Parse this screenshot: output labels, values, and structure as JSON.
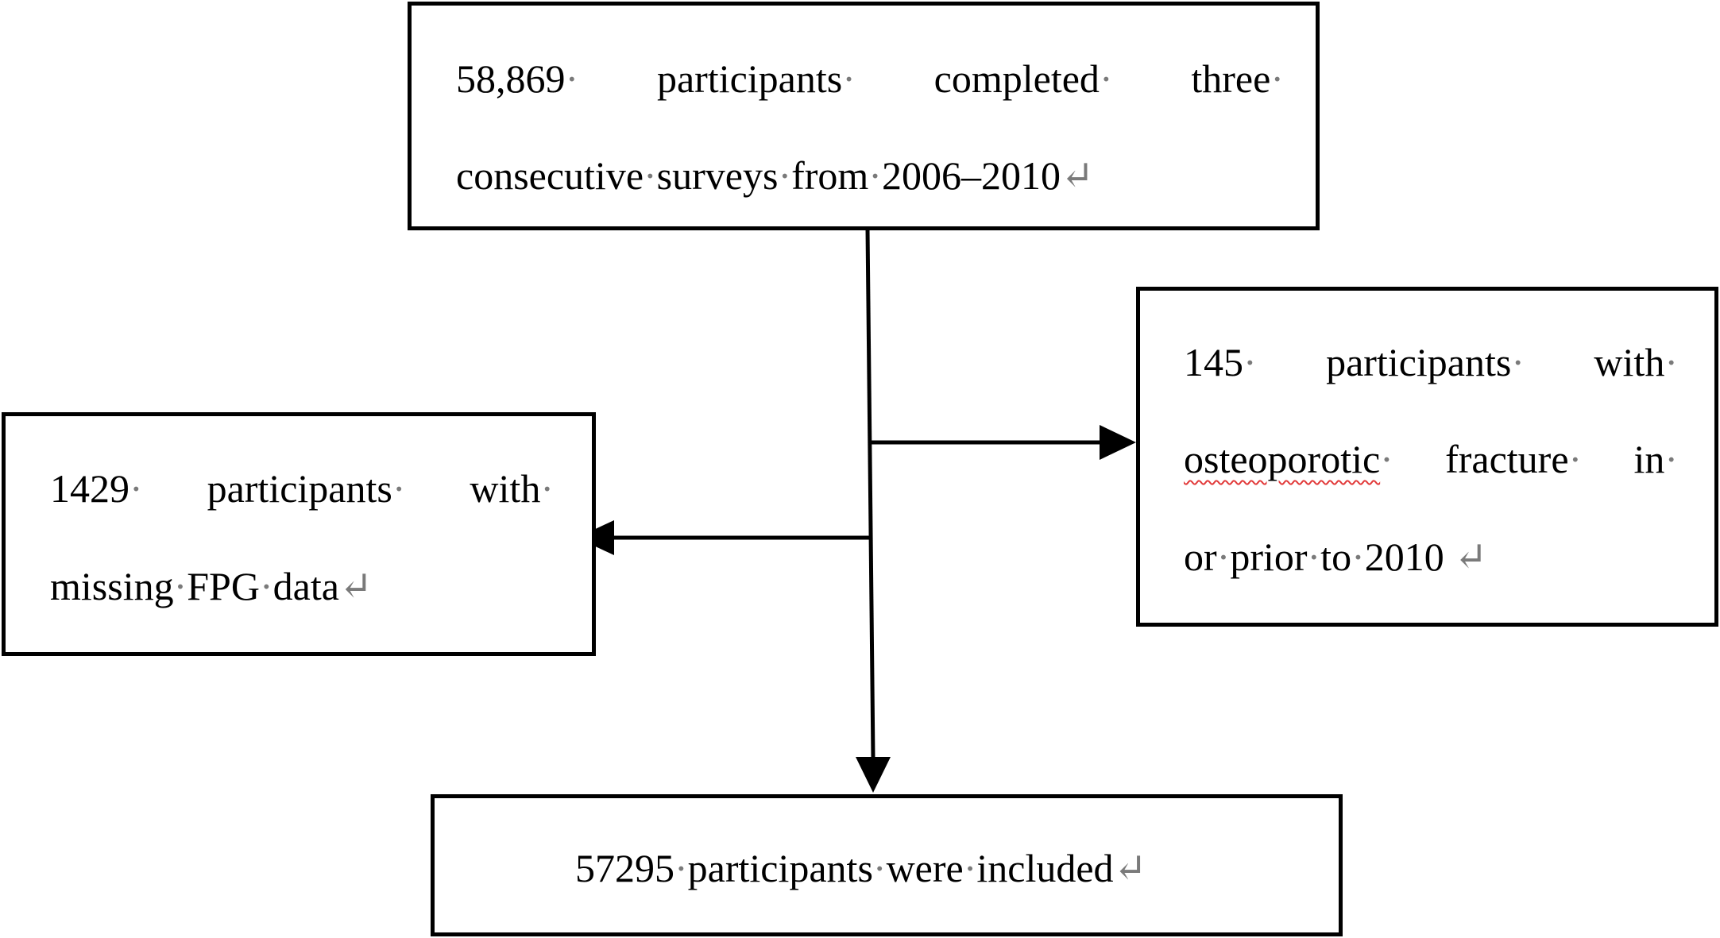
{
  "boxes": {
    "top": {
      "line1": [
        "58,869",
        "participants",
        "completed",
        "three"
      ],
      "line2": "consecutive surveys from 2006–2010"
    },
    "left": {
      "line1": [
        "1429",
        "participants",
        "with"
      ],
      "line2": "missing FPG data"
    },
    "right": {
      "line1": [
        "145",
        "participants",
        "with"
      ],
      "line2": [
        "osteoporotic",
        "fracture",
        "in"
      ],
      "line3": "or prior to 2010"
    },
    "bottom": {
      "line1": "57295 participants were included"
    }
  },
  "marks": {
    "space_dot": "·",
    "return": "↵"
  },
  "colors": {
    "line": "#000000",
    "spell_underline": "#e23b3b"
  }
}
